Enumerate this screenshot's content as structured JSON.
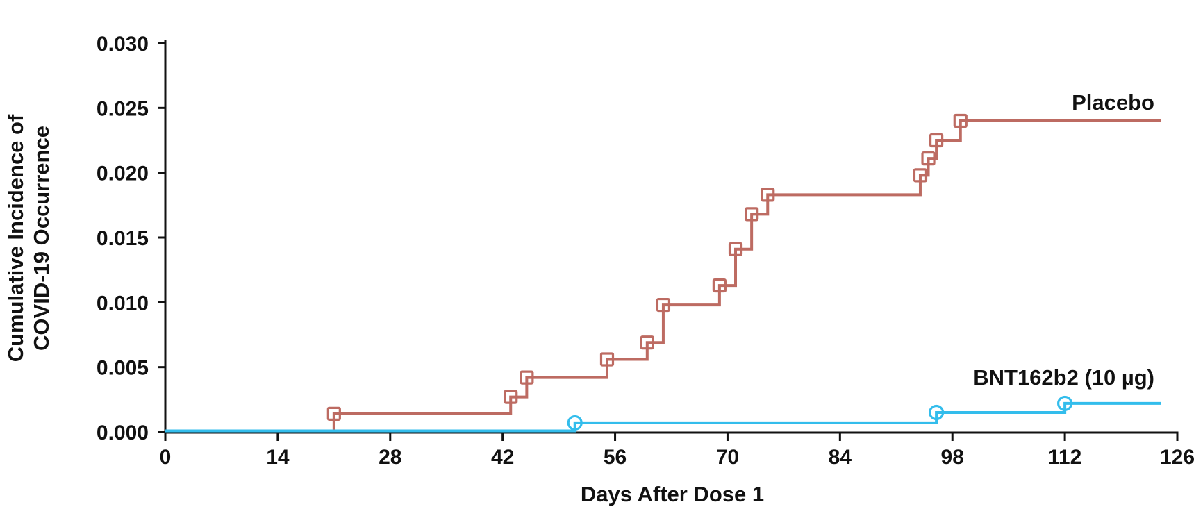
{
  "page": {
    "background_color": "#ffffff",
    "text_color": "#111111"
  },
  "chart_data": {
    "type": "line",
    "subtype": "kaplan-meier-step",
    "title": "",
    "xlabel": "Days After Dose 1",
    "ylabel_line1": "Cumulative Incidence of",
    "ylabel_line2": "COVID-19 Occurrence",
    "xlim": [
      0,
      126
    ],
    "ylim": [
      0,
      0.03
    ],
    "x_ticks": [
      0,
      14,
      28,
      42,
      56,
      70,
      84,
      98,
      112,
      126
    ],
    "y_ticks": [
      0.0,
      0.005,
      0.01,
      0.015,
      0.02,
      0.025,
      0.03
    ],
    "y_tick_labels": [
      "0.000",
      "0.005",
      "0.010",
      "0.015",
      "0.020",
      "0.025",
      "0.030"
    ],
    "grid": false,
    "legend_position": "end-of-line-labels",
    "axis_color": "#111111",
    "series": [
      {
        "name": "Placebo",
        "color": "#bd6b62",
        "marker": "open-square",
        "start_day": 0,
        "start_value": 0,
        "events": [
          [
            21,
            0.0014
          ],
          [
            43,
            0.0027
          ],
          [
            45,
            0.0042
          ],
          [
            55,
            0.0056
          ],
          [
            60,
            0.0069
          ],
          [
            62,
            0.0098
          ],
          [
            69,
            0.0113
          ],
          [
            71,
            0.0141
          ],
          [
            73,
            0.0168
          ],
          [
            75,
            0.0183
          ],
          [
            94,
            0.0198
          ],
          [
            95,
            0.0211
          ],
          [
            96,
            0.0225
          ],
          [
            99,
            0.024
          ]
        ],
        "followup_end_day": 124,
        "final_value": 0.024
      },
      {
        "name": "BNT162b2 (10 µg)",
        "color": "#33bdec",
        "marker": "open-circle",
        "start_day": 0,
        "start_value": 0,
        "events": [
          [
            51,
            0.0007
          ],
          [
            96,
            0.0015
          ],
          [
            112,
            0.0022
          ]
        ],
        "followup_end_day": 124,
        "final_value": 0.0022
      }
    ],
    "legend": {
      "placebo_label": "Placebo",
      "bnt_label": "BNT162b2 (10 µg)"
    }
  }
}
